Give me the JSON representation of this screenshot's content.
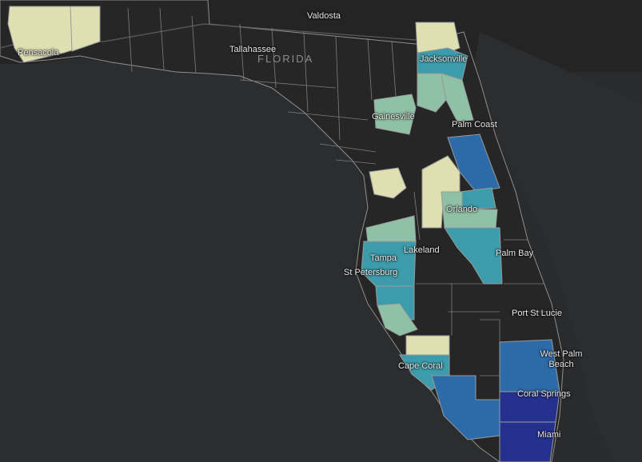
{
  "map": {
    "state_label": "FLORIDA",
    "colors": {
      "background": "#2a2b2d",
      "land": "#262626",
      "class_1": "#e0dfb1",
      "class_2": "#8fc1a6",
      "class_3": "#3c9cab",
      "class_4": "#2d6aa8",
      "class_5": "#26318f"
    },
    "cities": [
      {
        "name": "Valdosta"
      },
      {
        "name": "Pensacola"
      },
      {
        "name": "Tallahassee"
      },
      {
        "name": "Jacksonville"
      },
      {
        "name": "Gainesville"
      },
      {
        "name": "Palm Coast"
      },
      {
        "name": "Orlando"
      },
      {
        "name": "Lakeland"
      },
      {
        "name": "Tampa"
      },
      {
        "name": "St Petersburg"
      },
      {
        "name": "Palm Bay"
      },
      {
        "name": "Port St Lucie"
      },
      {
        "name": "West Palm Beach"
      },
      {
        "name": "Cape Coral"
      },
      {
        "name": "Coral Springs"
      },
      {
        "name": "Miami"
      }
    ]
  }
}
